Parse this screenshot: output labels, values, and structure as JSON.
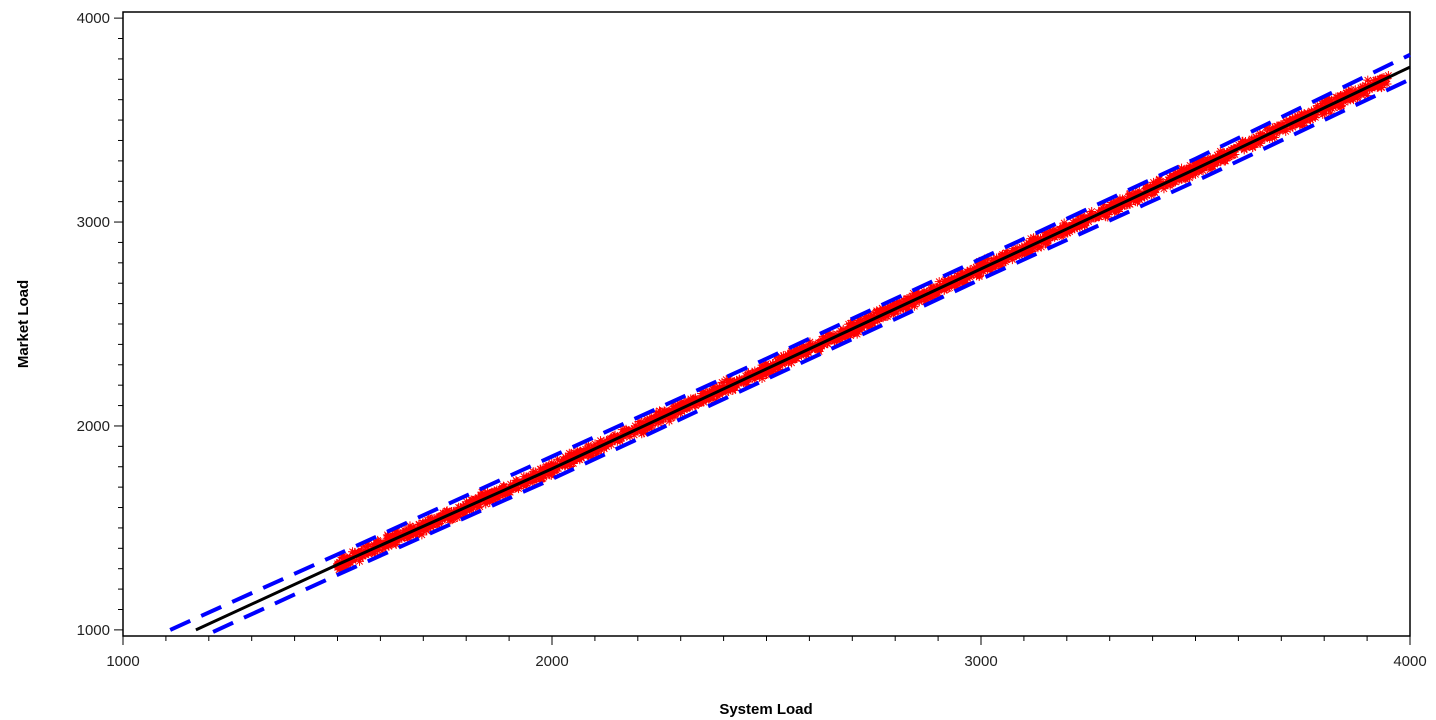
{
  "chart_data": {
    "type": "scatter",
    "title": "",
    "xlabel": "System Load",
    "ylabel": "Market Load",
    "xlim": [
      1000,
      4000
    ],
    "ylim": [
      970,
      4030
    ],
    "x_ticks": [
      1000,
      2000,
      3000,
      4000
    ],
    "y_ticks": [
      1000,
      2000,
      3000,
      4000
    ],
    "x_minor_step": 100,
    "y_minor_step": 100,
    "grid": false,
    "legend": "none",
    "scatter": {
      "marker": "star",
      "color": "#ff0000",
      "x_range": [
        1500,
        3950
      ],
      "spread": 45
    },
    "fit_line": {
      "color": "#000000",
      "style": "solid",
      "points": [
        [
          1170,
          1000
        ],
        [
          1500,
          1320
        ],
        [
          2000,
          1790
        ],
        [
          2500,
          2280
        ],
        [
          3000,
          2770
        ],
        [
          3500,
          3260
        ],
        [
          4000,
          3760
        ]
      ]
    },
    "upper_band": {
      "color": "#0000ff",
      "style": "dashed",
      "points": [
        [
          1110,
          1000
        ],
        [
          1500,
          1370
        ],
        [
          2000,
          1850
        ],
        [
          2500,
          2330
        ],
        [
          3000,
          2820
        ],
        [
          3500,
          3310
        ],
        [
          4000,
          3820
        ]
      ]
    },
    "lower_band": {
      "color": "#0000ff",
      "style": "dashed",
      "points": [
        [
          1210,
          990
        ],
        [
          1500,
          1270
        ],
        [
          2000,
          1740
        ],
        [
          2500,
          2230
        ],
        [
          3000,
          2720
        ],
        [
          3500,
          3200
        ],
        [
          4000,
          3700
        ]
      ]
    }
  }
}
